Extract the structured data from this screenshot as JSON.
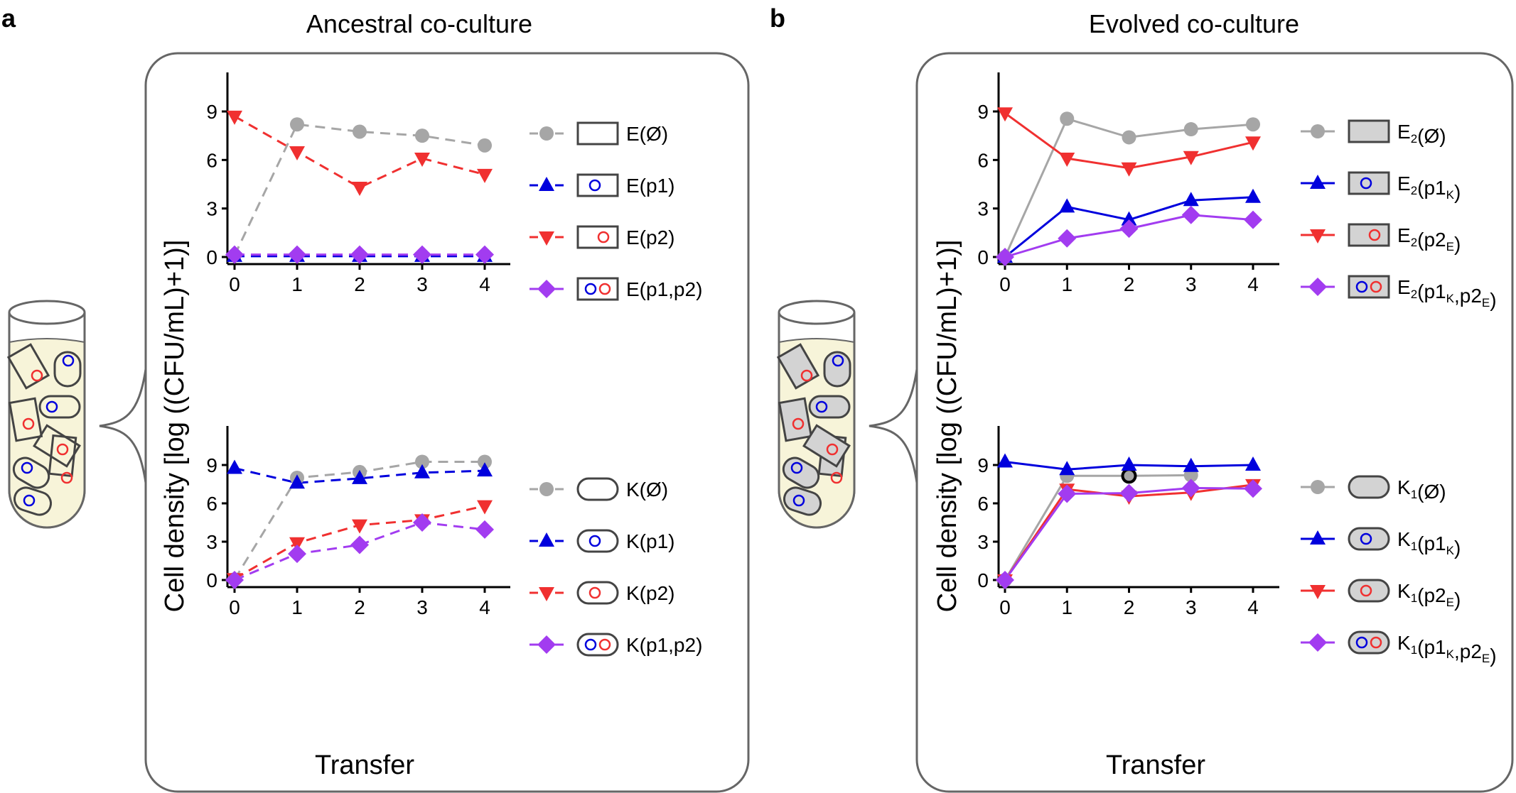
{
  "colors": {
    "grey": "#a6a6a6",
    "blue": "#0000dd",
    "red": "#f03030",
    "purple": "#a23cf0",
    "tube_fill": "#f7f4d9",
    "cell_fill": "#d3d3d3"
  },
  "panel_labels": [
    "a",
    "b"
  ],
  "xlabel": "Transfer",
  "ylabel": "Cell density [log ((CFU/mL)+1)]",
  "chart_data": [
    {
      "type": "line",
      "panel": "a",
      "title": "Ancestral co-culture",
      "subplot": "E",
      "line_style": "dashed",
      "x": [
        0,
        1,
        2,
        3,
        4
      ],
      "xticks": [
        "0",
        "1",
        "2",
        "3",
        "4"
      ],
      "yticks": [
        "0",
        "3",
        "6",
        "9"
      ],
      "ylim": [
        -0.5,
        10.5
      ],
      "xlabel": "",
      "ylabel": "Cell density [log ((CFU/mL)+1)]",
      "grid": false,
      "legend_position": "right",
      "series": [
        {
          "name": "E(Ø)",
          "marker": "circle",
          "color": "#a6a6a6",
          "values": [
            0.1,
            8.2,
            7.75,
            7.5,
            6.9
          ]
        },
        {
          "name": "E(p1)",
          "marker": "triangle-up",
          "color": "#0000dd",
          "values": [
            0.05,
            0.05,
            0.05,
            0.05,
            0.05
          ]
        },
        {
          "name": "E(p2)",
          "marker": "triangle-down",
          "color": "#f03030",
          "values": [
            8.7,
            6.5,
            4.3,
            6.1,
            5.1
          ]
        },
        {
          "name": "E(p1,p2)",
          "marker": "diamond",
          "color": "#a23cf0",
          "values": [
            0.15,
            0.15,
            0.15,
            0.15,
            0.15
          ]
        }
      ]
    },
    {
      "type": "line",
      "panel": "a",
      "title": "",
      "subplot": "K",
      "line_style": "dashed",
      "x": [
        0,
        1,
        2,
        3,
        4
      ],
      "xticks": [
        "0",
        "1",
        "2",
        "3",
        "4"
      ],
      "yticks": [
        "0",
        "3",
        "6",
        "9"
      ],
      "ylim": [
        -0.5,
        10.5
      ],
      "xlabel": "Transfer",
      "ylabel": "Cell density [log ((CFU/mL)+1)]",
      "grid": false,
      "legend_position": "right",
      "series": [
        {
          "name": "K(Ø)",
          "marker": "circle",
          "color": "#a6a6a6",
          "values": [
            0.05,
            8.0,
            8.45,
            9.25,
            9.25
          ]
        },
        {
          "name": "K(p1)",
          "marker": "triangle-up",
          "color": "#0000dd",
          "values": [
            8.75,
            7.6,
            7.95,
            8.4,
            8.55
          ]
        },
        {
          "name": "K(p2)",
          "marker": "triangle-down",
          "color": "#f03030",
          "values": [
            0.1,
            2.9,
            4.3,
            4.7,
            5.8
          ]
        },
        {
          "name": "K(p1,p2)",
          "marker": "diamond",
          "color": "#a23cf0",
          "values": [
            0,
            2.05,
            2.75,
            4.5,
            3.95
          ]
        }
      ]
    },
    {
      "type": "line",
      "panel": "b",
      "title": "Evolved co-culture",
      "subplot": "E2",
      "line_style": "solid",
      "x": [
        0,
        1,
        2,
        3,
        4
      ],
      "xticks": [
        "0",
        "1",
        "2",
        "3",
        "4"
      ],
      "yticks": [
        "0",
        "3",
        "6",
        "9"
      ],
      "ylim": [
        -0.5,
        10.5
      ],
      "xlabel": "",
      "ylabel": "Cell density [log ((CFU/mL)+1)]",
      "grid": false,
      "legend_position": "right",
      "series": [
        {
          "name": "E2(Ø)",
          "marker": "circle",
          "color": "#a6a6a6",
          "values": [
            0,
            8.55,
            7.4,
            7.9,
            8.2
          ]
        },
        {
          "name": "E2(p1K)",
          "marker": "triangle-up",
          "color": "#0000dd",
          "values": [
            0,
            3.1,
            2.3,
            3.5,
            3.7
          ]
        },
        {
          "name": "E2(p2E)",
          "marker": "triangle-down",
          "color": "#f03030",
          "values": [
            8.9,
            6.1,
            5.5,
            6.2,
            7.1
          ]
        },
        {
          "name": "E2(p1K,p2E)",
          "marker": "diamond",
          "color": "#a23cf0",
          "values": [
            0,
            1.15,
            1.75,
            2.6,
            2.3
          ]
        }
      ]
    },
    {
      "type": "line",
      "panel": "b",
      "title": "",
      "subplot": "K1",
      "line_style": "solid",
      "x": [
        0,
        1,
        2,
        3,
        4
      ],
      "xticks": [
        "0",
        "1",
        "2",
        "3",
        "4"
      ],
      "yticks": [
        "0",
        "3",
        "6",
        "9"
      ],
      "ylim": [
        -0.5,
        10.5
      ],
      "xlabel": "Transfer",
      "ylabel": "Cell density [log ((CFU/mL)+1)]",
      "grid": false,
      "legend_position": "right",
      "series": [
        {
          "name": "K1(Ø)",
          "marker": "circle",
          "color": "#a6a6a6",
          "values": [
            0,
            8.15,
            8.15,
            8.2,
            null
          ],
          "highlight_index": 2
        },
        {
          "name": "K1(p1K)",
          "marker": "triangle-up",
          "color": "#0000dd",
          "values": [
            9.25,
            8.65,
            9.0,
            8.9,
            9.0
          ]
        },
        {
          "name": "K1(p2E)",
          "marker": "triangle-down",
          "color": "#f03030",
          "values": [
            0,
            7.1,
            6.55,
            6.85,
            7.45
          ]
        },
        {
          "name": "K1(p1K,p2E)",
          "marker": "diamond",
          "color": "#a23cf0",
          "values": [
            0,
            6.75,
            6.8,
            7.2,
            7.15
          ]
        }
      ]
    }
  ],
  "legends": [
    [
      {
        "parts": [
          {
            "t": "E(Ø)"
          }
        ],
        "cell": "rect",
        "fill": "none",
        "dots": []
      },
      {
        "parts": [
          {
            "t": "E(p1)"
          }
        ],
        "cell": "rect",
        "fill": "none",
        "dots": [
          "blue"
        ]
      },
      {
        "parts": [
          {
            "t": "E(p2)"
          }
        ],
        "cell": "rect",
        "fill": "none",
        "dots": [
          "red"
        ]
      },
      {
        "parts": [
          {
            "t": "E(p1,p2)"
          }
        ],
        "cell": "rect",
        "fill": "none",
        "dots": [
          "blue",
          "red"
        ]
      }
    ],
    [
      {
        "parts": [
          {
            "t": "K(Ø)"
          }
        ],
        "cell": "pill",
        "fill": "none",
        "dots": []
      },
      {
        "parts": [
          {
            "t": "K(p1)"
          }
        ],
        "cell": "pill",
        "fill": "none",
        "dots": [
          "blue"
        ]
      },
      {
        "parts": [
          {
            "t": "K(p2)"
          }
        ],
        "cell": "pill",
        "fill": "none",
        "dots": [
          "red"
        ]
      },
      {
        "parts": [
          {
            "t": "K(p1,p2)"
          }
        ],
        "cell": "pill",
        "fill": "none",
        "dots": [
          "blue",
          "red"
        ]
      }
    ],
    [
      {
        "parts": [
          {
            "t": "E"
          },
          {
            "s": "2"
          },
          {
            "t": "(Ø)"
          }
        ],
        "cell": "rect",
        "fill": "grey",
        "dots": []
      },
      {
        "parts": [
          {
            "t": "E"
          },
          {
            "s": "2"
          },
          {
            "t": "(p1"
          },
          {
            "s": "K"
          },
          {
            "t": ")"
          }
        ],
        "cell": "rect",
        "fill": "grey",
        "dots": [
          "blue"
        ]
      },
      {
        "parts": [
          {
            "t": "E"
          },
          {
            "s": "2"
          },
          {
            "t": "(p2"
          },
          {
            "s": "E"
          },
          {
            "t": ")"
          }
        ],
        "cell": "rect",
        "fill": "grey",
        "dots": [
          "red"
        ]
      },
      {
        "parts": [
          {
            "t": "E"
          },
          {
            "s": "2"
          },
          {
            "t": "(p1"
          },
          {
            "s": "K"
          },
          {
            "t": ",p2"
          },
          {
            "s": "E"
          },
          {
            "t": ")"
          }
        ],
        "cell": "rect",
        "fill": "grey",
        "dots": [
          "blue",
          "red"
        ]
      }
    ],
    [
      {
        "parts": [
          {
            "t": "K"
          },
          {
            "s": "1"
          },
          {
            "t": "(Ø)"
          }
        ],
        "cell": "pill",
        "fill": "grey",
        "dots": []
      },
      {
        "parts": [
          {
            "t": "K"
          },
          {
            "s": "1"
          },
          {
            "t": "(p1"
          },
          {
            "s": "K"
          },
          {
            "t": ")"
          }
        ],
        "cell": "pill",
        "fill": "grey",
        "dots": [
          "blue"
        ]
      },
      {
        "parts": [
          {
            "t": "K"
          },
          {
            "s": "1"
          },
          {
            "t": "(p2"
          },
          {
            "s": "E"
          },
          {
            "t": ")"
          }
        ],
        "cell": "pill",
        "fill": "grey",
        "dots": [
          "red"
        ]
      },
      {
        "parts": [
          {
            "t": "K"
          },
          {
            "s": "1"
          },
          {
            "t": "(p1"
          },
          {
            "s": "K"
          },
          {
            "t": ",p2"
          },
          {
            "s": "E"
          },
          {
            "t": ")"
          }
        ],
        "cell": "pill",
        "fill": "grey",
        "dots": [
          "blue",
          "red"
        ]
      }
    ]
  ]
}
